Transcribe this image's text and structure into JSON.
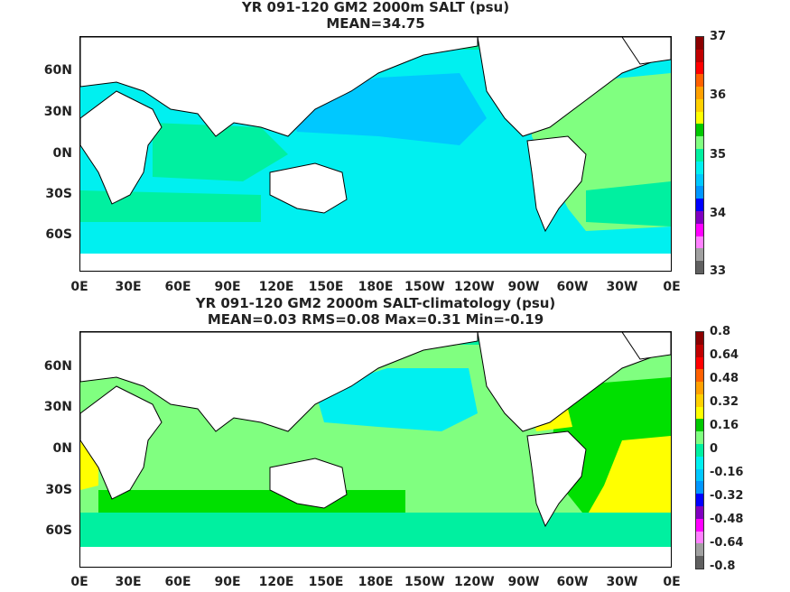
{
  "panels": [
    {
      "title_line1": "YR 091-120 GM2 2000m SALT (psu)",
      "title_line2": "MEAN=34.75",
      "colorbar_labels": [
        "37",
        "36",
        "35",
        "34",
        "33"
      ],
      "colorbar_colors": [
        "#8b0000",
        "#c00000",
        "#ff0000",
        "#ff6000",
        "#ffa000",
        "#ffd000",
        "#ffff00",
        "#00c800",
        "#80ff80",
        "#00f0a0",
        "#00f0f0",
        "#00c8ff",
        "#0096ff",
        "#0000ff",
        "#8000c0",
        "#ff00ff",
        "#ff80ff",
        "#a0a0a0",
        "#606060"
      ]
    },
    {
      "title_line1": "YR 091-120 GM2 2000m SALT-climatology (psu)",
      "title_line2": "MEAN=0.03   RMS=0.08   Max=0.31   Min=-0.19",
      "colorbar_labels": [
        "0.8",
        "0.64",
        "0.48",
        "0.32",
        "0.16",
        "0",
        "-0.16",
        "-0.32",
        "-0.48",
        "-0.64",
        "-0.8"
      ],
      "colorbar_colors": [
        "#8b0000",
        "#c00000",
        "#ff0000",
        "#ff6000",
        "#ffa000",
        "#ffd000",
        "#ffff00",
        "#00c800",
        "#80ff80",
        "#00f0a0",
        "#00f0f0",
        "#00c8ff",
        "#0096ff",
        "#0000ff",
        "#8000c0",
        "#ff00ff",
        "#ff80ff",
        "#a0a0a0",
        "#606060"
      ]
    }
  ],
  "axes": {
    "y_labels": [
      "60N",
      "30N",
      "0N",
      "30S",
      "60S"
    ],
    "x_labels": [
      "0E",
      "30E",
      "60E",
      "90E",
      "120E",
      "150E",
      "180E",
      "150W",
      "120W",
      "90W",
      "60W",
      "30W",
      "0E"
    ]
  },
  "colors": {
    "pacific_fresh": "#00c8ff",
    "indian_mid": "#00f0f0",
    "atlantic_salty": "#80ff80",
    "mid_aqua": "#00f0a0",
    "anom_positive_small": "#80ff80",
    "anom_positive_mid": "#00e000",
    "anom_positive_high": "#ffff00",
    "anom_negative_small": "#00f0f0",
    "anom_zero": "#00f0a0"
  }
}
